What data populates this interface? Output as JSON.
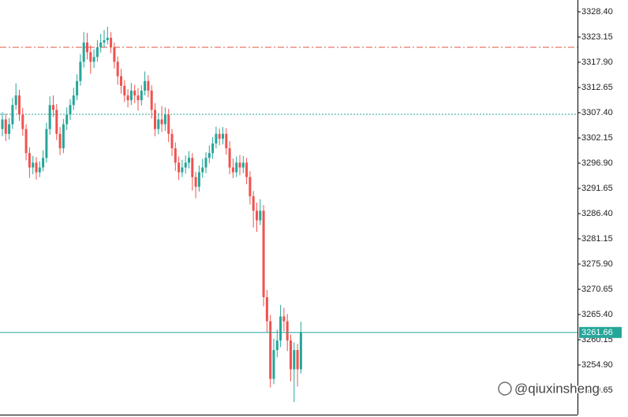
{
  "chart_data": {
    "type": "candlestick",
    "up_color": "#26a69a",
    "down_color": "#ef5350",
    "open": [
      3304,
      3306,
      3303,
      3305,
      3309,
      3311,
      3307,
      3304,
      3299,
      3296,
      3297,
      3295,
      3296,
      3298,
      3304,
      3309,
      3308,
      3303,
      3300,
      3305,
      3307,
      3309,
      3311,
      3314,
      3318,
      3322,
      3320,
      3318,
      3319,
      3321,
      3322,
      3322.5,
      3323,
      3321,
      3318,
      3315,
      3313,
      3311,
      3310,
      3312,
      3311,
      3310,
      3312,
      3314,
      3312,
      3308,
      3304,
      3306,
      3305,
      3307,
      3303,
      3300,
      3297,
      3295,
      3296,
      3297,
      3298,
      3294,
      3292,
      3295,
      3296,
      3298,
      3299,
      3301,
      3303,
      3302,
      3303,
      3300,
      3296,
      3295,
      3297,
      3296,
      3297,
      3294,
      3290,
      3287,
      3285,
      3287,
      3269,
      3264,
      3252,
      3258,
      3260,
      3265,
      3264,
      3260,
      3254,
      3258,
      3254
    ],
    "high": [
      3307.5,
      3307.2,
      3306.3,
      3310.5,
      3313.5,
      3312.2,
      3308.4,
      3305,
      3300.2,
      3298.4,
      3298.2,
      3297.3,
      3299.6,
      3305.3,
      3310.8,
      3311,
      3309.2,
      3304.4,
      3306.1,
      3308.5,
      3310.2,
      3312.6,
      3315.4,
      3319.6,
      3324.2,
      3324,
      3321.4,
      3320.6,
      3322.5,
      3323.8,
      3324.6,
      3325.3,
      3324.2,
      3322,
      3319.1,
      3316.5,
      3314.2,
      3312.3,
      3313.6,
      3313.2,
      3312.5,
      3313.1,
      3316,
      3315.2,
      3313.1,
      3309.4,
      3307.3,
      3308.8,
      3308.5,
      3308.2,
      3304,
      3301.2,
      3298.3,
      3297.6,
      3298.5,
      3299.4,
      3299,
      3295.1,
      3296.4,
      3297.8,
      3299.2,
      3300.6,
      3302.3,
      3304.5,
      3304.1,
      3304.4,
      3304.2,
      3301.5,
      3297.9,
      3298.3,
      3298.6,
      3298.4,
      3298,
      3295.2,
      3291.1,
      3288.7,
      3289.4,
      3288.2,
      3270.5,
      3265.3,
      3260.4,
      3262.3,
      3267.4,
      3266.8,
      3265.5,
      3261.2,
      3259.6,
      3259.3,
      3263.9
    ],
    "low": [
      3302.5,
      3301.5,
      3301.8,
      3304,
      3308,
      3305.7,
      3302.6,
      3297.5,
      3293.8,
      3294.6,
      3293.5,
      3294,
      3295.2,
      3297,
      3302.8,
      3306.5,
      3301.7,
      3298.6,
      3299,
      3303.8,
      3305.9,
      3308,
      3310,
      3313,
      3316.8,
      3318.5,
      3315.5,
      3316.7,
      3318,
      3319.9,
      3321,
      3321.6,
      3319.8,
      3316.6,
      3313.2,
      3311.4,
      3309.6,
      3308.5,
      3309,
      3309.4,
      3307.8,
      3308.9,
      3311,
      3310.6,
      3306.2,
      3302.5,
      3302.9,
      3303.4,
      3303.6,
      3301.3,
      3298.4,
      3295.3,
      3293.4,
      3294,
      3294.7,
      3295.8,
      3291.2,
      3289.6,
      3291,
      3293.9,
      3294.8,
      3296.9,
      3297.8,
      3300,
      3300.6,
      3300.8,
      3298.7,
      3294.6,
      3293.8,
      3294,
      3294.4,
      3294.8,
      3292.5,
      3288.3,
      3283.5,
      3282.6,
      3284,
      3267.1,
      3261.6,
      3250.2,
      3250.9,
      3256.5,
      3258.6,
      3261.9,
      3257.8,
      3251.5,
      3247.2,
      3250.4,
      3253.1
    ],
    "close": [
      3306,
      3303,
      3305,
      3309,
      3311,
      3307,
      3304,
      3299,
      3296,
      3297,
      3295,
      3296,
      3298,
      3304,
      3309,
      3308,
      3303,
      3300,
      3305,
      3307,
      3309,
      3311,
      3314,
      3318,
      3322,
      3320,
      3318,
      3319,
      3321,
      3322,
      3322.5,
      3323,
      3321,
      3318,
      3315,
      3313,
      3311,
      3310,
      3312,
      3311,
      3310,
      3312,
      3314,
      3312,
      3308,
      3304,
      3306,
      3305,
      3307,
      3303,
      3300,
      3297,
      3295,
      3296,
      3297,
      3298,
      3294,
      3292,
      3295,
      3296,
      3298,
      3299,
      3301,
      3303,
      3302,
      3303,
      3300,
      3296,
      3295,
      3297,
      3296,
      3297,
      3294,
      3290,
      3287,
      3285,
      3287,
      3269,
      3264,
      3252,
      3258,
      3260,
      3265,
      3264,
      3260,
      3254,
      3258,
      3254,
      3261.66
    ],
    "ylim": [
      3244.56,
      3330.86
    ],
    "yticks": [
      {
        "value": 3328.4,
        "label": "3328.40"
      },
      {
        "value": 3323.15,
        "label": "3323.15"
      },
      {
        "value": 3317.9,
        "label": "3317.90"
      },
      {
        "value": 3312.65,
        "label": "3312.65"
      },
      {
        "value": 3307.4,
        "label": "3307.40"
      },
      {
        "value": 3302.15,
        "label": "3302.15"
      },
      {
        "value": 3296.9,
        "label": "3296.90"
      },
      {
        "value": 3291.65,
        "label": "3291.65"
      },
      {
        "value": 3286.4,
        "label": "3286.40"
      },
      {
        "value": 3281.15,
        "label": "3281.15"
      },
      {
        "value": 3275.9,
        "label": "3275.90"
      },
      {
        "value": 3270.65,
        "label": "3270.65"
      },
      {
        "value": 3265.4,
        "label": "3265.40"
      },
      {
        "value": 3260.15,
        "label": "3260.15"
      },
      {
        "value": 3254.9,
        "label": "3254.90"
      },
      {
        "value": 3249.65,
        "label": "3249.65"
      }
    ],
    "levels": [
      {
        "value": 3321.02,
        "color": "#e0533f",
        "style": "dash-dot"
      },
      {
        "value": 3307.07,
        "color": "#26a69a",
        "style": "dotted"
      }
    ],
    "current_price": {
      "value": 3261.66,
      "color": "#26a69a"
    },
    "watermark": "@qiuxinsheng"
  }
}
